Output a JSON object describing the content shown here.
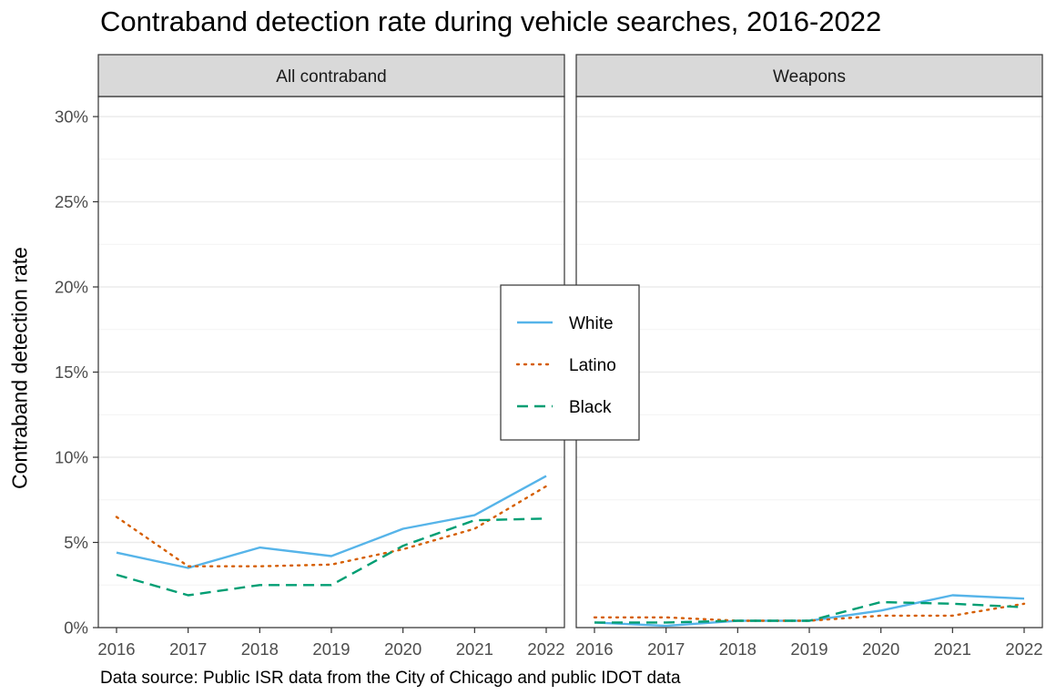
{
  "chart_data": {
    "type": "line",
    "title": "Contraband detection rate during vehicle searches, 2016-2022",
    "ylabel": "Contraband detection rate",
    "xlabel": "",
    "caption": "Data source: Public ISR data from the City of Chicago and public IDOT data",
    "x": [
      2016,
      2017,
      2018,
      2019,
      2020,
      2021,
      2022
    ],
    "x_ticks": [
      "2016",
      "2017",
      "2018",
      "2019",
      "2020",
      "2021",
      "2022"
    ],
    "ylim": [
      0,
      0.3
    ],
    "y_ticks": [
      {
        "value": 0,
        "label": "0%"
      },
      {
        "value": 0.05,
        "label": "5%"
      },
      {
        "value": 0.1,
        "label": "10%"
      },
      {
        "value": 0.15,
        "label": "15%"
      },
      {
        "value": 0.2,
        "label": "20%"
      },
      {
        "value": 0.25,
        "label": "25%"
      },
      {
        "value": 0.3,
        "label": "30%"
      }
    ],
    "grid": true,
    "legend_position": "center",
    "legend": [
      "White",
      "Latino",
      "Black"
    ],
    "series_styles": {
      "White": {
        "color": "#56B4E9",
        "dash": "solid"
      },
      "Latino": {
        "color": "#D55E00",
        "dash": "dotted"
      },
      "Black": {
        "color": "#009E73",
        "dash": "dashed"
      }
    },
    "panels": [
      {
        "label": "All contraband",
        "series": [
          {
            "name": "White",
            "values": [
              0.044,
              0.035,
              0.047,
              0.042,
              0.058,
              0.066,
              0.089
            ]
          },
          {
            "name": "Latino",
            "values": [
              0.065,
              0.036,
              0.036,
              0.037,
              0.046,
              0.058,
              0.083
            ]
          },
          {
            "name": "Black",
            "values": [
              0.031,
              0.019,
              0.025,
              0.025,
              0.048,
              0.063,
              0.064
            ]
          }
        ]
      },
      {
        "label": "Weapons",
        "series": [
          {
            "name": "White",
            "values": [
              0.003,
              0.001,
              0.004,
              0.004,
              0.01,
              0.019,
              0.017
            ]
          },
          {
            "name": "Latino",
            "values": [
              0.006,
              0.006,
              0.004,
              0.004,
              0.007,
              0.007,
              0.014
            ]
          },
          {
            "name": "Black",
            "values": [
              0.003,
              0.003,
              0.004,
              0.004,
              0.015,
              0.014,
              0.012
            ]
          }
        ]
      }
    ]
  }
}
